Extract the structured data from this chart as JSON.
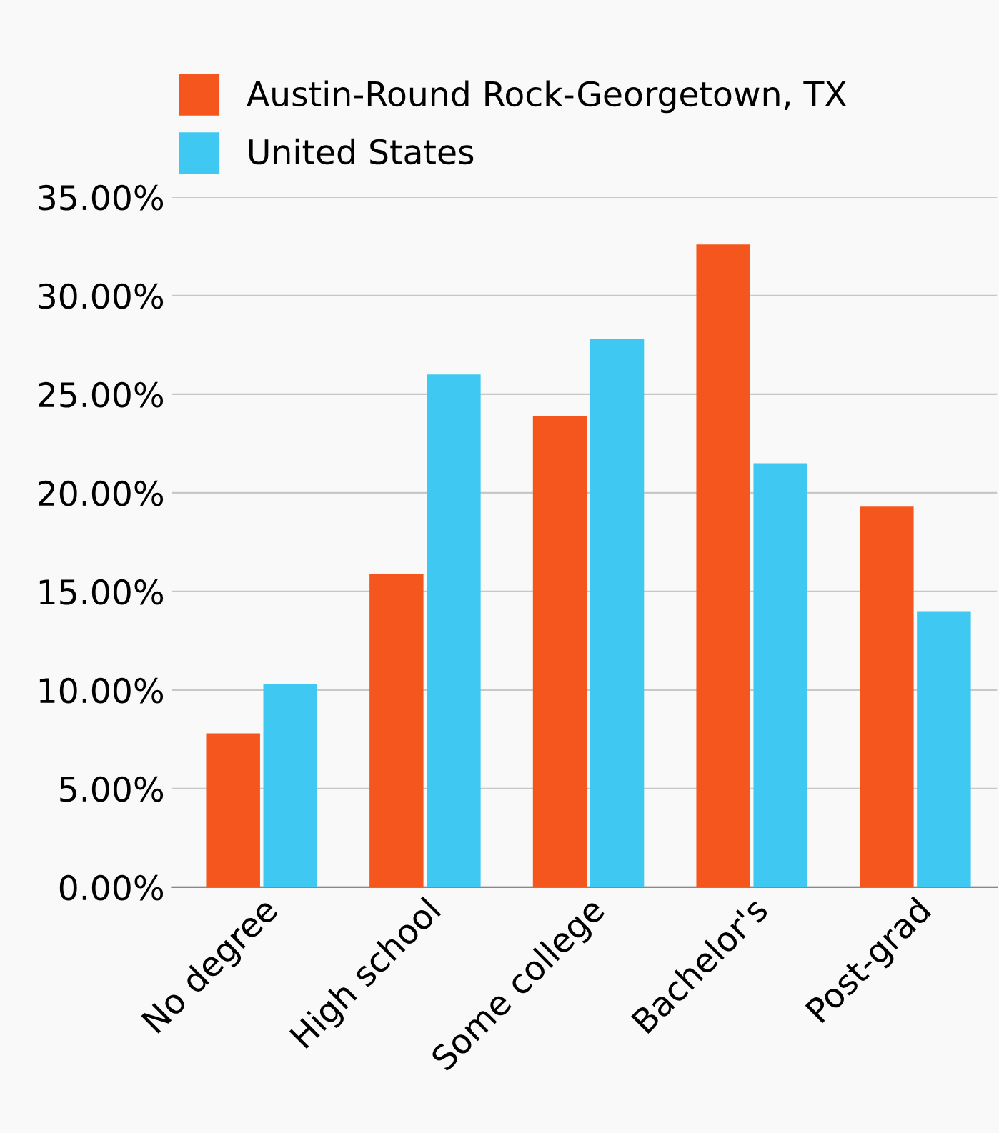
{
  "chart_data": {
    "type": "bar",
    "categories": [
      "No degree",
      "High school",
      "Some college",
      "Bachelor's",
      "Post-grad"
    ],
    "series": [
      {
        "name": "Austin-Round Rock-Georgetown, TX",
        "color": "#f4561d",
        "values": [
          7.8,
          15.9,
          23.9,
          32.6,
          19.3
        ]
      },
      {
        "name": "United States",
        "color": "#3ec8f2",
        "values": [
          10.3,
          26.0,
          27.8,
          21.5,
          14.0
        ]
      }
    ],
    "ylim": [
      0,
      35
    ],
    "yticks": [
      {
        "value": 0,
        "label": "0.00%"
      },
      {
        "value": 5,
        "label": "5.00%"
      },
      {
        "value": 10,
        "label": "10.00%"
      },
      {
        "value": 15,
        "label": "15.00%"
      },
      {
        "value": 20,
        "label": "20.00%"
      },
      {
        "value": 25,
        "label": "25.00%"
      },
      {
        "value": 30,
        "label": "30.00%"
      },
      {
        "value": 35,
        "label": "35.00%"
      }
    ],
    "grid": "y",
    "legend": "top left"
  }
}
